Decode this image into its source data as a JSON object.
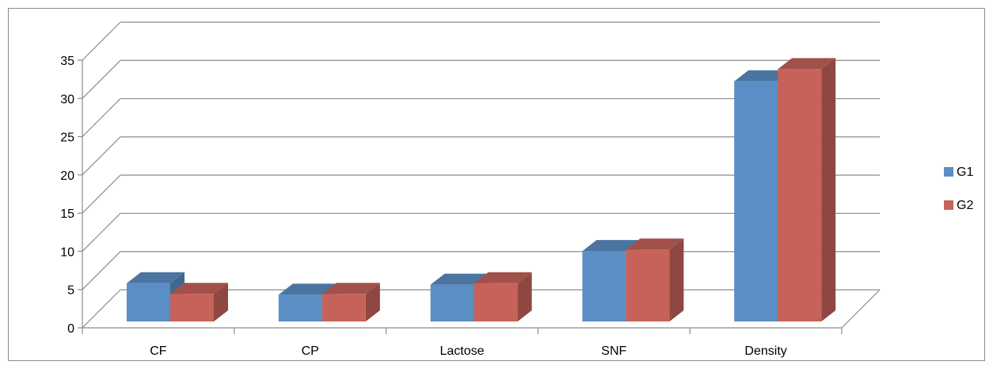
{
  "chart_data": {
    "type": "bar",
    "style": "3d-clustered-column",
    "categories": [
      "CF",
      "CP",
      "Lactose",
      "SNF",
      "Density"
    ],
    "series": [
      {
        "name": "G1",
        "values": [
          5.0,
          3.5,
          4.8,
          9.2,
          31.4
        ],
        "color": "#5b8ec4"
      },
      {
        "name": "G2",
        "values": [
          3.6,
          3.6,
          5.0,
          9.4,
          33.0
        ],
        "color": "#c6625a"
      }
    ],
    "yticks": [
      0,
      5,
      10,
      15,
      20,
      25,
      30,
      35
    ],
    "ylim": [
      0,
      35
    ],
    "grid": true,
    "legend_position": "right",
    "title": "",
    "xlabel": "",
    "ylabel": ""
  }
}
